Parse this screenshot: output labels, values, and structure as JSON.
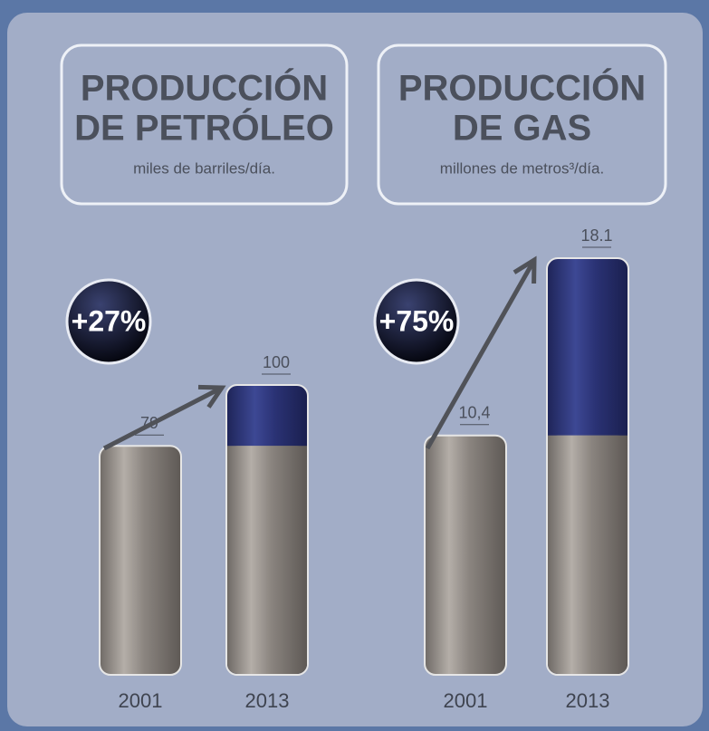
{
  "chart_data": [
    {
      "type": "bar",
      "title": [
        "PRODUCCIÓN",
        "DE PETRÓLEO"
      ],
      "subtitle": "miles de barriles/día.",
      "annotation": "+27%",
      "categories": [
        "2001",
        "2013"
      ],
      "values": [
        79,
        100
      ],
      "value_labels": [
        "79",
        "100"
      ],
      "color": "#2f3878"
    },
    {
      "type": "bar",
      "title": [
        "PRODUCCIÓN",
        "DE GAS"
      ],
      "subtitle": "millones de metros³/día.",
      "annotation": "+75%",
      "categories": [
        "2001",
        "2013"
      ],
      "values": [
        10.4,
        18.1
      ],
      "value_labels": [
        "10,4",
        "18.1"
      ],
      "color": "#2f3878"
    }
  ]
}
